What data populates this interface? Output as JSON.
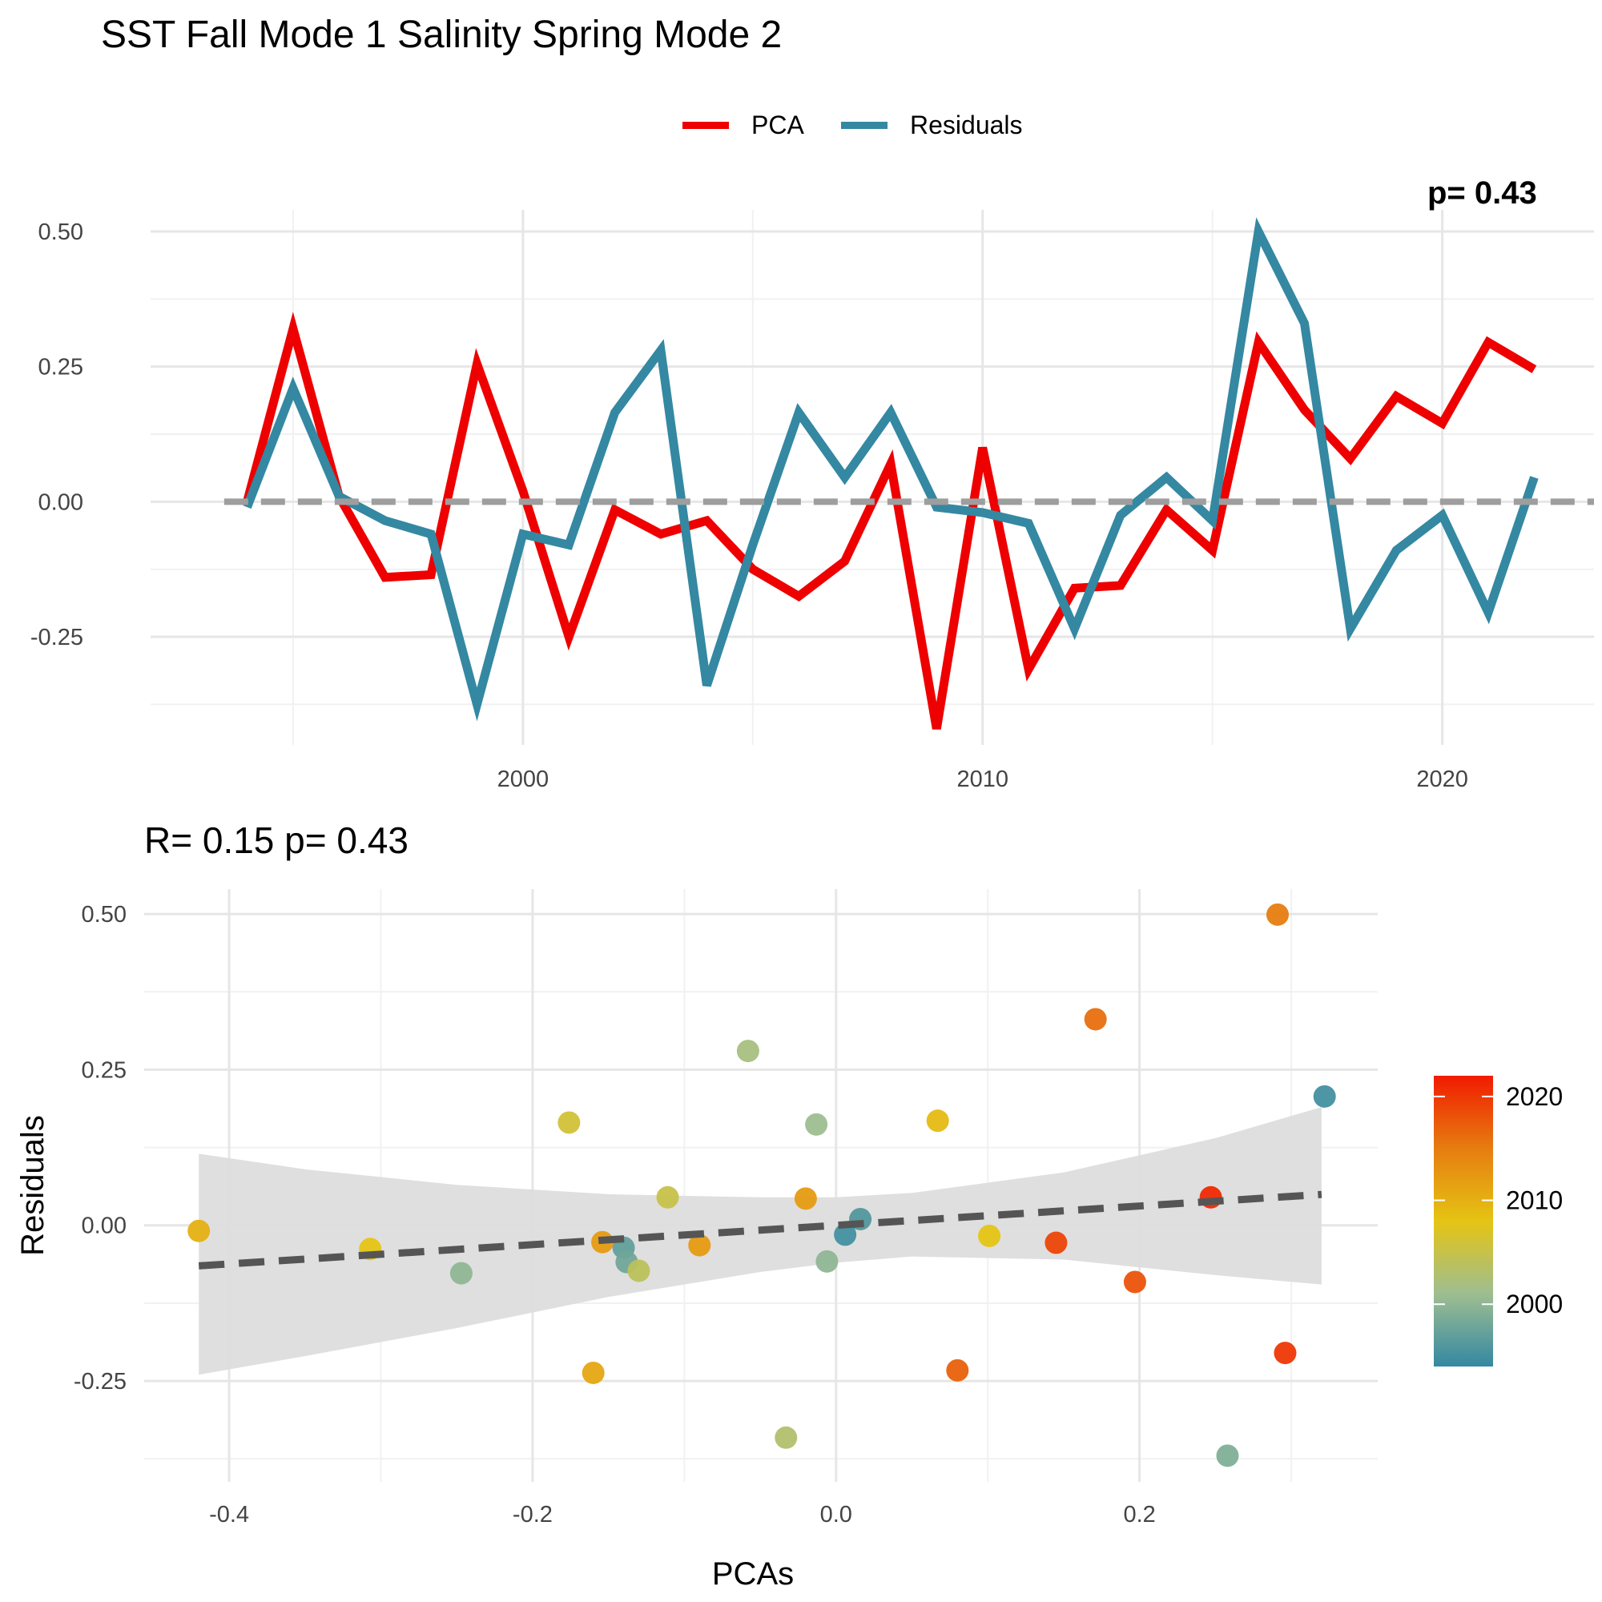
{
  "title": "SST Fall Mode 1 Salinity Spring Mode 2",
  "subtitle": "R= 0.15  p= 0.43",
  "corner_label": "p= 0.43",
  "colors": {
    "pca": "#ee0000",
    "residuals": "#3488a2",
    "zero_line": "#9e9e9e",
    "grid_major": "#e6e6e6",
    "grid_minor": "#f1f1f1",
    "ribbon": "#dddddd",
    "fit_line": "#555555",
    "palette": [
      "#3488a2",
      "#9ebe91",
      "#e5c414",
      "#e67d10",
      "#f11b00"
    ]
  },
  "chart_data": [
    {
      "type": "line",
      "legend": [
        "PCA",
        "Residuals"
      ],
      "legend_position": "top",
      "grid": true,
      "x": [
        1994,
        1995,
        1996,
        1997,
        1998,
        1999,
        2000,
        2001,
        2002,
        2003,
        2004,
        2005,
        2006,
        2007,
        2008,
        2009,
        2010,
        2011,
        2012,
        2013,
        2014,
        2015,
        2016,
        2017,
        2018,
        2019,
        2020,
        2021,
        2022
      ],
      "series": [
        {
          "name": "PCA",
          "values": [
            0.0,
            0.32,
            0.01,
            -0.14,
            -0.135,
            0.255,
            0.02,
            -0.25,
            -0.015,
            -0.06,
            -0.035,
            -0.125,
            -0.175,
            -0.11,
            0.07,
            -0.42,
            0.1,
            -0.31,
            -0.16,
            -0.155,
            -0.015,
            -0.09,
            0.295,
            0.17,
            0.08,
            0.195,
            0.145,
            0.295,
            0.245
          ]
        },
        {
          "name": "Residuals",
          "values": [
            -0.01,
            0.21,
            0.01,
            -0.035,
            -0.06,
            -0.375,
            -0.06,
            -0.08,
            0.165,
            0.28,
            -0.34,
            -0.08,
            0.165,
            0.045,
            0.165,
            -0.01,
            -0.02,
            -0.04,
            -0.235,
            -0.025,
            0.045,
            -0.035,
            0.5,
            0.33,
            -0.235,
            -0.09,
            -0.025,
            -0.205,
            0.045
          ]
        }
      ],
      "xticks": [
        "2000",
        "2010",
        "2020"
      ],
      "yticks": [
        "0.50",
        "0.25",
        "0.00",
        "-0.25"
      ],
      "xlim": [
        1991.9,
        2023.3
      ],
      "ylim": [
        -0.45,
        0.54
      ]
    },
    {
      "type": "scatter",
      "xlabel": "PCAs",
      "ylabel": "Residuals",
      "xticks": [
        "-0.4",
        "-0.2",
        "0.0",
        "0.2"
      ],
      "yticks": [
        "0.50",
        "0.25",
        "0.00",
        "-0.25"
      ],
      "xlim": [
        -0.456,
        0.357
      ],
      "ylim": [
        -0.412,
        0.54
      ],
      "fit": {
        "intercept": 0.0,
        "slope": 0.155,
        "style": "dashed",
        "x_range": [
          -0.42,
          0.32
        ]
      },
      "ribbon_upper": [
        [
          -0.42,
          0.115
        ],
        [
          -0.35,
          0.09
        ],
        [
          -0.25,
          0.065
        ],
        [
          -0.15,
          0.05
        ],
        [
          -0.05,
          0.045
        ],
        [
          0.0,
          0.045
        ],
        [
          0.05,
          0.052
        ],
        [
          0.15,
          0.085
        ],
        [
          0.25,
          0.14
        ],
        [
          0.32,
          0.19
        ]
      ],
      "ribbon_lower": [
        [
          -0.42,
          -0.24
        ],
        [
          -0.35,
          -0.21
        ],
        [
          -0.25,
          -0.165
        ],
        [
          -0.15,
          -0.115
        ],
        [
          -0.05,
          -0.075
        ],
        [
          0.0,
          -0.06
        ],
        [
          0.05,
          -0.05
        ],
        [
          0.15,
          -0.055
        ],
        [
          0.25,
          -0.08
        ],
        [
          0.32,
          -0.095
        ]
      ],
      "colorbar": {
        "label_ticks": [
          "2020",
          "2010",
          "2000"
        ],
        "range": [
          1994,
          2022
        ]
      },
      "points": [
        {
          "x": 0.322,
          "y": 0.207,
          "year": 1995
        },
        {
          "x": 0.258,
          "y": -0.37,
          "year": 1999
        },
        {
          "x": -0.247,
          "y": -0.077,
          "year": 2000
        },
        {
          "x": -0.006,
          "y": -0.058,
          "year": 2000
        },
        {
          "x": 0.016,
          "y": 0.01,
          "year": 1996
        },
        {
          "x": 0.006,
          "y": -0.015,
          "year": 1995
        },
        {
          "x": -0.14,
          "y": -0.036,
          "year": 1997
        },
        {
          "x": -0.138,
          "y": -0.059,
          "year": 1998
        },
        {
          "x": -0.013,
          "y": 0.162,
          "year": 2001
        },
        {
          "x": -0.058,
          "y": 0.28,
          "year": 2002
        },
        {
          "x": -0.033,
          "y": -0.341,
          "year": 2003
        },
        {
          "x": -0.13,
          "y": -0.073,
          "year": 2004
        },
        {
          "x": -0.111,
          "y": 0.045,
          "year": 2005
        },
        {
          "x": -0.176,
          "y": 0.165,
          "year": 2006
        },
        {
          "x": 0.101,
          "y": -0.017,
          "year": 2008
        },
        {
          "x": 0.067,
          "y": 0.168,
          "year": 2009
        },
        {
          "x": -0.42,
          "y": -0.009,
          "year": 2010
        },
        {
          "x": -0.16,
          "y": -0.237,
          "year": 2011
        },
        {
          "x": -0.307,
          "y": -0.038,
          "year": 2008
        },
        {
          "x": -0.154,
          "y": -0.027,
          "year": 2012
        },
        {
          "x": -0.09,
          "y": -0.032,
          "year": 2012
        },
        {
          "x": -0.02,
          "y": 0.043,
          "year": 2012
        },
        {
          "x": 0.08,
          "y": -0.233,
          "year": 2017
        },
        {
          "x": 0.171,
          "y": 0.331,
          "year": 2016
        },
        {
          "x": 0.197,
          "y": -0.091,
          "year": 2018
        },
        {
          "x": 0.291,
          "y": 0.499,
          "year": 2015
        },
        {
          "x": 0.145,
          "y": -0.028,
          "year": 2019
        },
        {
          "x": 0.247,
          "y": 0.045,
          "year": 2021
        },
        {
          "x": 0.296,
          "y": -0.205,
          "year": 2020
        }
      ]
    }
  ]
}
